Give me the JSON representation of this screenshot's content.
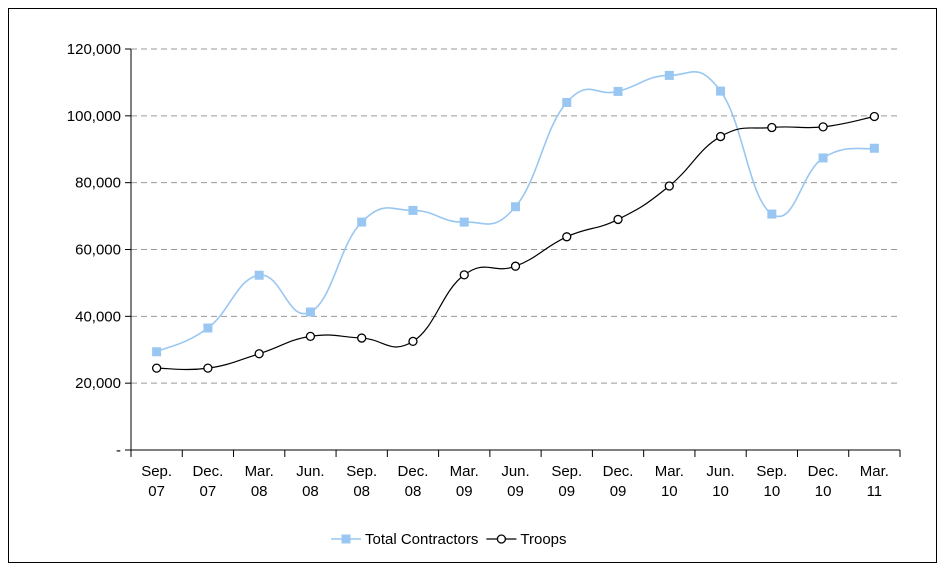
{
  "chart_data": {
    "type": "line",
    "title": "",
    "xlabel": "",
    "ylabel": "",
    "categories": [
      [
        "Sep.",
        "07"
      ],
      [
        "Dec.",
        "07"
      ],
      [
        "Mar.",
        "08"
      ],
      [
        "Jun.",
        "08"
      ],
      [
        "Sep.",
        "08"
      ],
      [
        "Dec.",
        "08"
      ],
      [
        "Mar.",
        "09"
      ],
      [
        "Jun.",
        "09"
      ],
      [
        "Sep.",
        "09"
      ],
      [
        "Dec.",
        "09"
      ],
      [
        "Mar.",
        "10"
      ],
      [
        "Jun.",
        "10"
      ],
      [
        "Sep.",
        "10"
      ],
      [
        "Dec.",
        "10"
      ],
      [
        "Mar.",
        "11"
      ]
    ],
    "ylim": [
      0,
      120000
    ],
    "yticks": [
      {
        "value": 0,
        "label": "-"
      },
      {
        "value": 20000,
        "label": "20,000"
      },
      {
        "value": 40000,
        "label": "40,000"
      },
      {
        "value": 60000,
        "label": "60,000"
      },
      {
        "value": 80000,
        "label": "80,000"
      },
      {
        "value": 100000,
        "label": "100,000"
      },
      {
        "value": 120000,
        "label": "120,000"
      }
    ],
    "grid": "horizontal dashed",
    "legend_position": "bottom",
    "series": [
      {
        "name": "Total Contractors",
        "color": "#99c7f2",
        "marker": "square",
        "values": [
          29400,
          36500,
          52300,
          41300,
          68200,
          71700,
          68200,
          72800,
          104000,
          107300,
          112100,
          107400,
          70600,
          87400,
          90300
        ]
      },
      {
        "name": "Troops",
        "color": "#000000",
        "marker": "circle-open",
        "values": [
          24500,
          24500,
          28800,
          34000,
          33500,
          32500,
          52400,
          55000,
          63800,
          69000,
          79000,
          93800,
          96500,
          96700,
          99800
        ]
      }
    ]
  }
}
